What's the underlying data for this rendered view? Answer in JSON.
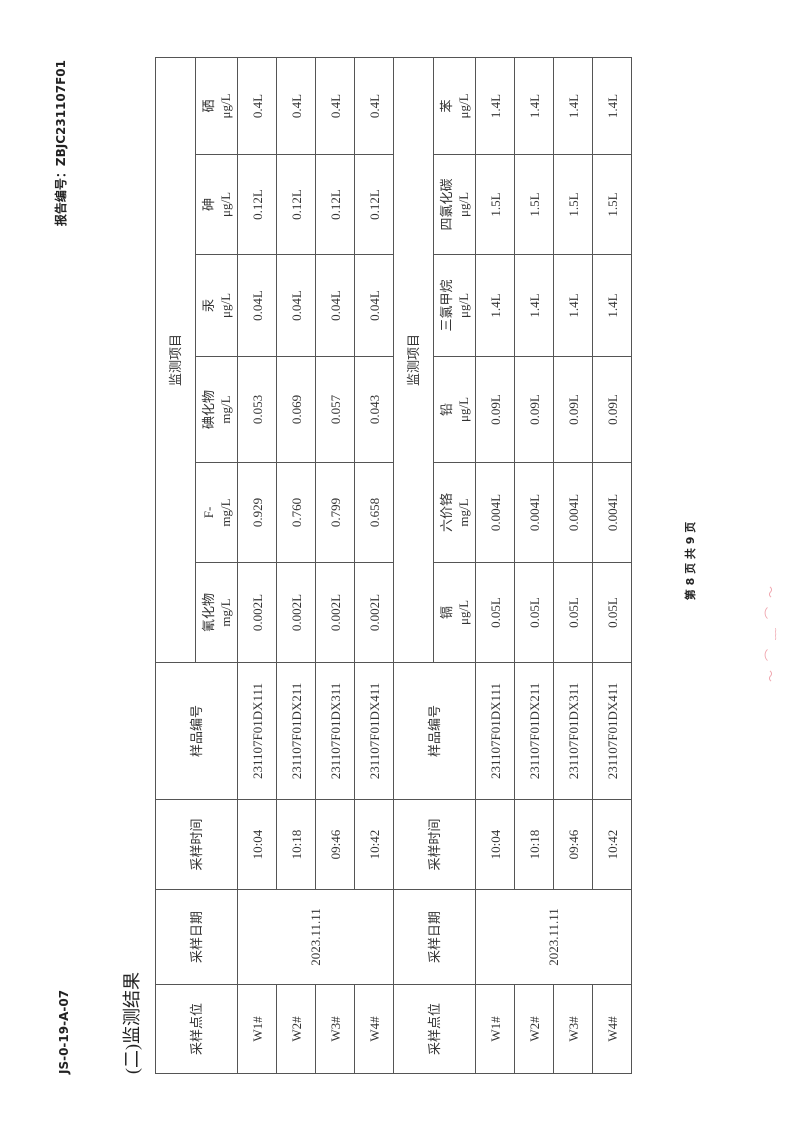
{
  "header": {
    "form_code": "JS-0-19-A-07",
    "report_no": "报告编号：ZBJC231107F01"
  },
  "section_title": "(二)监测结果",
  "columns": {
    "point": "采样点位",
    "date": "采样日期",
    "time": "采样时间",
    "sample_id": "样品编号",
    "group": "监测项目"
  },
  "table1": {
    "params": [
      {
        "name": "氰化物",
        "unit": "mg/L"
      },
      {
        "name": "F-",
        "unit": "mg/L"
      },
      {
        "name": "碘化物",
        "unit": "mg/L"
      },
      {
        "name": "汞",
        "unit": "μg/L"
      },
      {
        "name": "砷",
        "unit": "μg/L"
      },
      {
        "name": "硒",
        "unit": "μg/L"
      }
    ],
    "date": "2023.11.11",
    "rows": [
      {
        "point": "W1#",
        "time": "10:04",
        "id": "231107F01DX111",
        "v": [
          "0.002L",
          "0.929",
          "0.053",
          "0.04L",
          "0.12L",
          "0.4L"
        ]
      },
      {
        "point": "W2#",
        "time": "10:18",
        "id": "231107F01DX211",
        "v": [
          "0.002L",
          "0.760",
          "0.069",
          "0.04L",
          "0.12L",
          "0.4L"
        ]
      },
      {
        "point": "W3#",
        "time": "09:46",
        "id": "231107F01DX311",
        "v": [
          "0.002L",
          "0.799",
          "0.057",
          "0.04L",
          "0.12L",
          "0.4L"
        ]
      },
      {
        "point": "W4#",
        "time": "10:42",
        "id": "231107F01DX411",
        "v": [
          "0.002L",
          "0.658",
          "0.043",
          "0.04L",
          "0.12L",
          "0.4L"
        ]
      }
    ]
  },
  "table2": {
    "params": [
      {
        "name": "镉",
        "unit": "μg/L"
      },
      {
        "name": "六价铬",
        "unit": "mg/L"
      },
      {
        "name": "铅",
        "unit": "μg/L"
      },
      {
        "name": "三氯甲烷",
        "unit": "μg/L"
      },
      {
        "name": "四氯化碳",
        "unit": "μg/L"
      },
      {
        "name": "苯",
        "unit": "μg/L"
      }
    ],
    "date": "2023.11.11",
    "rows": [
      {
        "point": "W1#",
        "time": "10:04",
        "id": "231107F01DX111",
        "v": [
          "0.05L",
          "0.004L",
          "0.09L",
          "1.4L",
          "1.5L",
          "1.4L"
        ]
      },
      {
        "point": "W2#",
        "time": "10:18",
        "id": "231107F01DX211",
        "v": [
          "0.05L",
          "0.004L",
          "0.09L",
          "1.4L",
          "1.5L",
          "1.4L"
        ]
      },
      {
        "point": "W3#",
        "time": "09:46",
        "id": "231107F01DX311",
        "v": [
          "0.05L",
          "0.004L",
          "0.09L",
          "1.4L",
          "1.5L",
          "1.4L"
        ]
      },
      {
        "point": "W4#",
        "time": "10:42",
        "id": "231107F01DX411",
        "v": [
          "0.05L",
          "0.004L",
          "0.09L",
          "1.4L",
          "1.5L",
          "1.4L"
        ]
      }
    ]
  },
  "footer": "第 8 页 共 9 页"
}
